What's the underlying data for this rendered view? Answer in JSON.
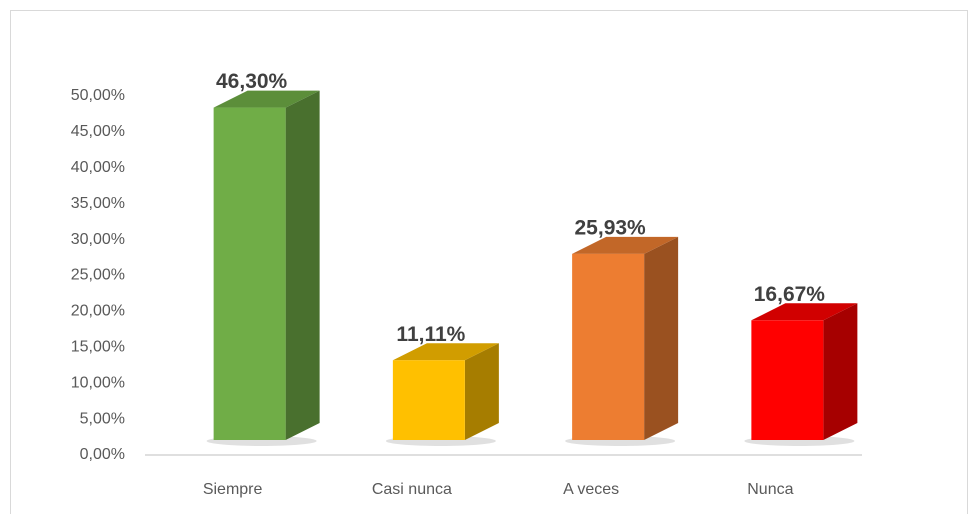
{
  "chart_data": {
    "type": "bar3d",
    "categories": [
      "Siempre",
      "Casi nunca",
      "A veces",
      "Nunca"
    ],
    "values": [
      46.3,
      11.11,
      25.93,
      16.67
    ],
    "value_labels": [
      "46,30%",
      "11,11%",
      "25,93%",
      "16,67%"
    ],
    "colors": [
      "#70ad47",
      "#ffc000",
      "#ed7d31",
      "#ff0000"
    ],
    "ylim": [
      0,
      50
    ],
    "yticks": [
      {
        "value": 0,
        "label": "0,00%"
      },
      {
        "value": 5,
        "label": "5,00%"
      },
      {
        "value": 10,
        "label": "10,00%"
      },
      {
        "value": 15,
        "label": "15,00%"
      },
      {
        "value": 20,
        "label": "20,00%"
      },
      {
        "value": 25,
        "label": "25,00%"
      },
      {
        "value": 30,
        "label": "30,00%"
      },
      {
        "value": 35,
        "label": "35,00%"
      },
      {
        "value": 40,
        "label": "40,00%"
      },
      {
        "value": 45,
        "label": "45,00%"
      },
      {
        "value": 50,
        "label": "50,00%"
      }
    ]
  }
}
